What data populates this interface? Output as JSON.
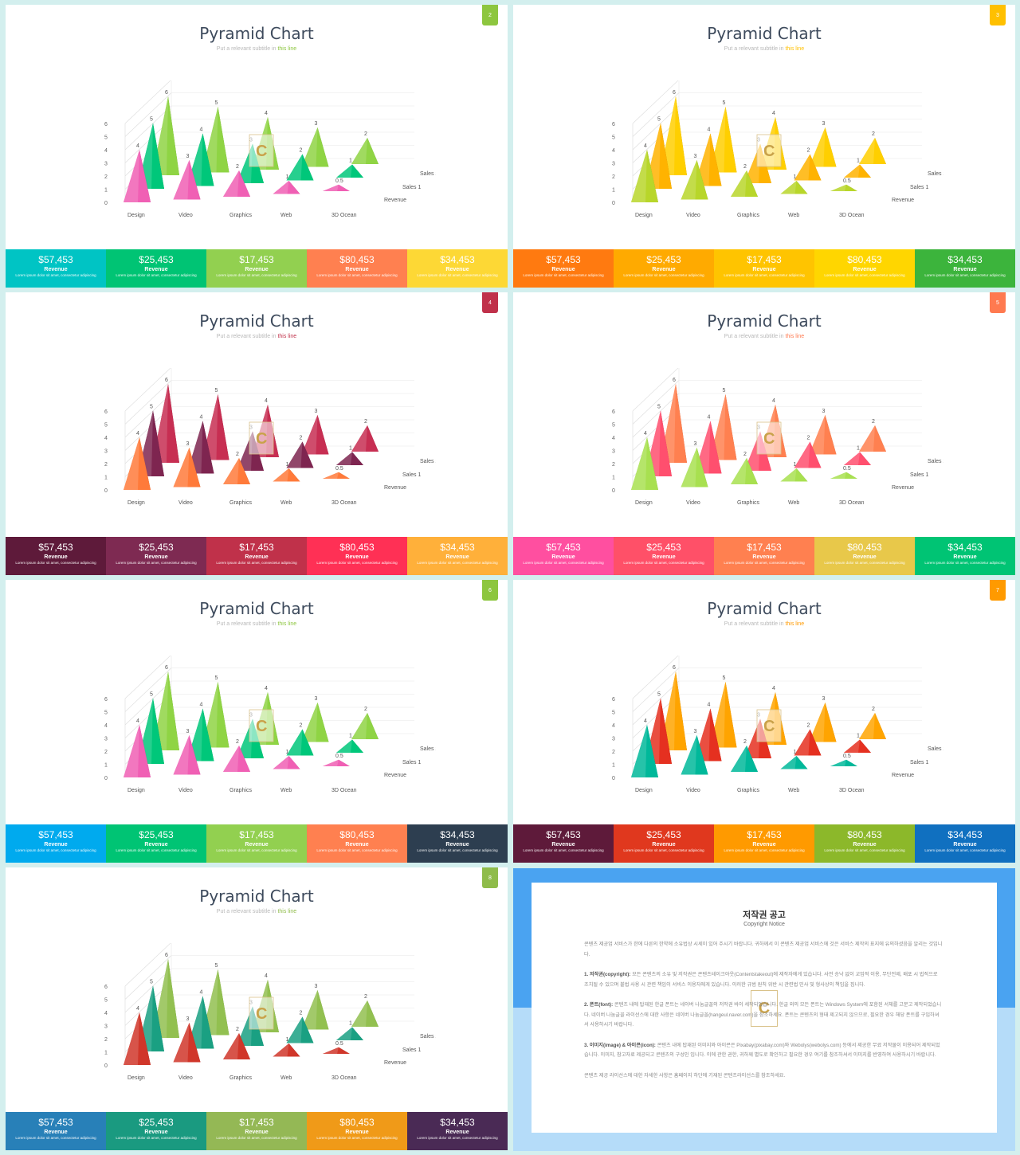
{
  "stat_value_labels": [
    "$57,453",
    "$25,453",
    "$17,453",
    "$80,453",
    "$34,453"
  ],
  "stat_label": "Revenue",
  "stat_desc": "Lorem ipsum dolor sit amet, consectetur adipiscing",
  "chart_data": [
    {
      "type": "bar",
      "shape": "3d-pyramid",
      "title": "Pyramid Chart",
      "subtitle": "Put a relevant subtitle in this line",
      "categories": [
        "Design",
        "Video",
        "Graphics",
        "Web",
        "3D Ocean"
      ],
      "series": [
        {
          "name": "Revenue",
          "values": [
            4,
            3,
            2,
            1,
            0.5
          ]
        },
        {
          "name": "Sales 1",
          "values": [
            5,
            4,
            3,
            2,
            1
          ]
        },
        {
          "name": "Sales 2",
          "values": [
            6,
            5,
            4,
            3,
            2
          ]
        }
      ],
      "yticks": [
        "0",
        "1",
        "2",
        "3",
        "4",
        "5",
        "6"
      ],
      "ylim": [
        0,
        6
      ],
      "grid": true,
      "legend": "right"
    }
  ],
  "slides": [
    {
      "number": "2",
      "subtitle_pre": "Put a relevant subtitle in ",
      "subtitle_hl": "this line",
      "badge_color": "#8dc63f",
      "hl_color": "#8dc63f",
      "series_colors": [
        "#f05fb4",
        "#00c77a",
        "#8fd444"
      ],
      "stat_colors": [
        "#00c4c4",
        "#00c474",
        "#92d050",
        "#ff8050",
        "#fdd835"
      ]
    },
    {
      "number": "3",
      "subtitle_pre": "Put a relevant subtitle in ",
      "subtitle_hl": "this line",
      "badge_color": "#ffc000",
      "hl_color": "#ffc000",
      "series_colors": [
        "#b8d62a",
        "#ffb300",
        "#ffcf00"
      ],
      "stat_colors": [
        "#ff7a10",
        "#ffaa00",
        "#ffc400",
        "#ffd600",
        "#3cb43c"
      ]
    },
    {
      "number": "4",
      "subtitle_pre": "Put a relevant subtitle in ",
      "subtitle_hl": "this line",
      "badge_color": "#c0314a",
      "hl_color": "#c0314a",
      "series_colors": [
        "#ff7a3a",
        "#7e2550",
        "#c72e52"
      ],
      "stat_colors": [
        "#5e1a3a",
        "#7e2a52",
        "#c0314a",
        "#ff3055",
        "#ffb03a"
      ]
    },
    {
      "number": "5",
      "subtitle_pre": "Put a relevant subtitle in ",
      "subtitle_hl": "this line",
      "badge_color": "#ff7a50",
      "hl_color": "#ff7a50",
      "series_colors": [
        "#a8e050",
        "#ff4f6e",
        "#ff8050"
      ],
      "stat_colors": [
        "#ff4fa0",
        "#ff5068",
        "#ff8050",
        "#e8c84a",
        "#00c474"
      ]
    },
    {
      "number": "6",
      "subtitle_pre": "Put a relevant subtitle in ",
      "subtitle_hl": "this line",
      "badge_color": "#8dc63f",
      "hl_color": "#8dc63f",
      "series_colors": [
        "#f05fb4",
        "#00c77a",
        "#8fd444"
      ],
      "stat_colors": [
        "#00aaee",
        "#00c474",
        "#92d050",
        "#ff8050",
        "#2d3e50"
      ]
    },
    {
      "number": "7",
      "subtitle_pre": "Put a relevant subtitle in ",
      "subtitle_hl": "this line",
      "badge_color": "#ff9a00",
      "hl_color": "#ff9a00",
      "series_colors": [
        "#00b89a",
        "#e53020",
        "#ffa400"
      ],
      "stat_colors": [
        "#5e1a3a",
        "#e0381e",
        "#ff9a00",
        "#8cb82a",
        "#1070c0"
      ]
    },
    {
      "number": "8",
      "subtitle_pre": "Put a relevant subtitle in ",
      "subtitle_hl": "this line",
      "badge_color": "#8fbc4a",
      "hl_color": "#8fbc4a",
      "series_colors": [
        "#d0362a",
        "#1aa082",
        "#92c050"
      ],
      "stat_colors": [
        "#2880b8",
        "#1a9a80",
        "#94b855",
        "#f09a18",
        "#4a2a55"
      ]
    }
  ],
  "notice": {
    "title": "저작권 공고",
    "subtitle": "Copyright Notice",
    "intro": "콘텐츠 제공업 서비스가 한에 다른의 한약에 소유법상 시세이 있어 주시기 바랍니다. 귀하께서 이 콘텐츠 제공업 서비스에 것은 서비스 제작의 표지에 유의하셨음을 알리는 것입니다.",
    "p1_head": "1. 저작권(copyright):",
    "p1": "모든 콘텐츠의 소유 및 저작권은 콘텐츠테이크아웃(Contentstakeout)에 제작자에게 있습니다. 사전 승낙 없이 교업적 이용, 무단전제, 배포 시 법적으로 조치될 수 있으며 불법 사용 시 관련 책임이 서비스 이용자에게 있습니다. 이러한 규범 원칙 위반 시 관련법 민사 및 형사상의 책임을 집니다.",
    "p2_head": "2. 폰트(font):",
    "p2": "콘텐츠 내에 탑재된 한글 폰트는 네이버 나눔글꼴의 저작권 바이 세작되었습니다. 한글 외의 모든 폰트는 Windows System에 포함된 서체를 고분고 제작되었습니다. 네이버 나눔글꼴 라이선스에 대한 사항은 네이버 나눔글꼴(hangeul.naver.com)을 참조하세요. 폰트는 콘텐츠의 형태 제고되지 않으므로, 필요한 경우 해당 폰트를 구입하셔서 사용하시기 바랍니다.",
    "p3_head": "3. 이미지(image) & 아이콘(icon):",
    "p3": "콘텐츠 내에 탑재된 이미지와 아이콘은 Pixabay(pixabay.com)와 Webolys(webolys.com) 등에서 제공한 무료 저작물이 이용되어 제작되었습니다. 이미지, 참고자료 제공되고 콘텐츠의 구성인 입니다. 이에 관한 권한, 귀하께 별도로 확인하고 필요한 경우 여기를 참조하셔서 이미지를 반영하여 사용하시기 바랍니다.",
    "outro": "콘텐츠 제공 라이선스에 대한 자세한 사항은 홈페이지 하단에 기재된 콘텐츠라이선스를 참조하세요."
  },
  "watermark_letter": "C"
}
